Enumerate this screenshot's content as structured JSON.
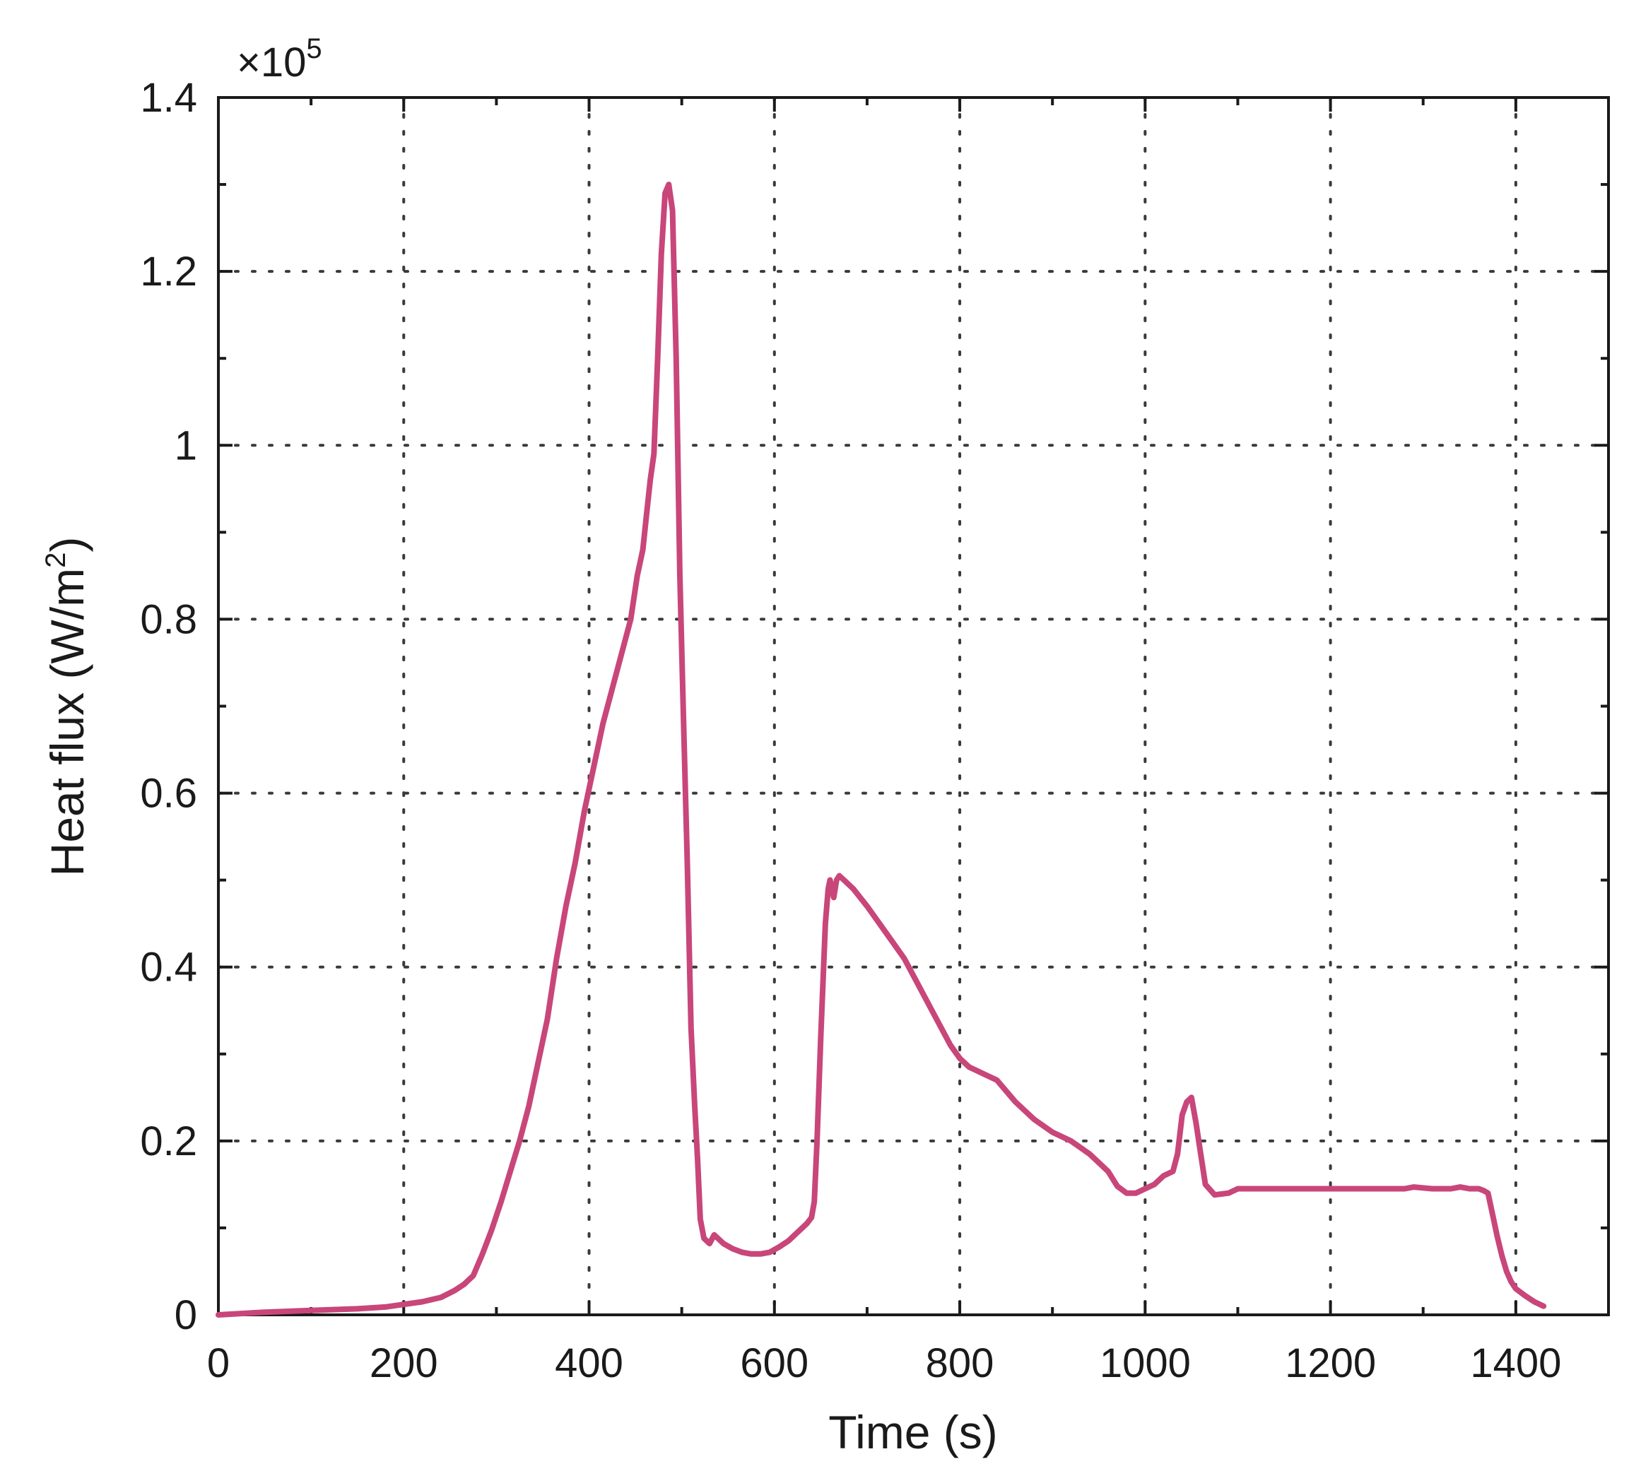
{
  "chart_data": {
    "type": "line",
    "title": "",
    "xlabel": "Time (s)",
    "ylabel": {
      "text": "Heat flux (W/m",
      "sup": "2",
      "close": ")"
    },
    "y_multiplier": {
      "text": "×10",
      "sup": "5"
    },
    "xlim": [
      0,
      1500
    ],
    "ylim": [
      0,
      1.4
    ],
    "x_ticks": [
      0,
      200,
      400,
      600,
      800,
      1000,
      1200,
      1400
    ],
    "x_tick_labels": [
      "0",
      "200",
      "400",
      "600",
      "800",
      "1000",
      "1200",
      "1400"
    ],
    "y_ticks": [
      0,
      0.2,
      0.4,
      0.6,
      0.8,
      1.0,
      1.2,
      1.4
    ],
    "y_tick_labels": [
      "0",
      "0.2",
      "0.4",
      "0.6",
      "0.8",
      "1",
      "1.2",
      "1.4"
    ],
    "x_minor_step": 100,
    "y_minor_step": 0.1,
    "grid": true,
    "series": [
      {
        "color": "#c8467a",
        "x": [
          0,
          50,
          100,
          150,
          180,
          200,
          220,
          240,
          255,
          265,
          275,
          285,
          295,
          305,
          315,
          325,
          335,
          345,
          355,
          365,
          375,
          385,
          395,
          405,
          415,
          425,
          435,
          445,
          452,
          458,
          462,
          466,
          470,
          474,
          478,
          482,
          486,
          490,
          494,
          498,
          502,
          506,
          510,
          514,
          517,
          520,
          524,
          530,
          535,
          545,
          555,
          565,
          575,
          585,
          595,
          605,
          615,
          625,
          635,
          640,
          643,
          646,
          650,
          655,
          658,
          660,
          664,
          667,
          670,
          675,
          685,
          700,
          720,
          740,
          750,
          760,
          775,
          790,
          800,
          810,
          820,
          830,
          840,
          860,
          880,
          900,
          920,
          940,
          950,
          960,
          970,
          980,
          990,
          1000,
          1010,
          1020,
          1030,
          1035,
          1040,
          1045,
          1050,
          1055,
          1060,
          1065,
          1075,
          1090,
          1100,
          1150,
          1200,
          1250,
          1280,
          1290,
          1300,
          1310,
          1320,
          1330,
          1340,
          1350,
          1360,
          1365,
          1370,
          1375,
          1380,
          1385,
          1390,
          1395,
          1400,
          1410,
          1420,
          1430
        ],
        "values": [
          0.0,
          0.003,
          0.005,
          0.007,
          0.009,
          0.012,
          0.015,
          0.02,
          0.028,
          0.035,
          0.045,
          0.07,
          0.098,
          0.13,
          0.165,
          0.2,
          0.24,
          0.29,
          0.34,
          0.41,
          0.47,
          0.52,
          0.58,
          0.63,
          0.68,
          0.72,
          0.76,
          0.8,
          0.85,
          0.88,
          0.92,
          0.96,
          0.99,
          1.1,
          1.22,
          1.29,
          1.3,
          1.27,
          1.1,
          0.85,
          0.68,
          0.52,
          0.33,
          0.24,
          0.18,
          0.11,
          0.088,
          0.082,
          0.092,
          0.082,
          0.076,
          0.072,
          0.07,
          0.07,
          0.072,
          0.078,
          0.085,
          0.095,
          0.105,
          0.112,
          0.13,
          0.2,
          0.32,
          0.45,
          0.49,
          0.5,
          0.48,
          0.5,
          0.505,
          0.5,
          0.49,
          0.47,
          0.44,
          0.41,
          0.39,
          0.37,
          0.34,
          0.31,
          0.295,
          0.285,
          0.28,
          0.275,
          0.27,
          0.245,
          0.225,
          0.21,
          0.2,
          0.185,
          0.175,
          0.165,
          0.148,
          0.14,
          0.14,
          0.145,
          0.15,
          0.16,
          0.165,
          0.185,
          0.23,
          0.245,
          0.25,
          0.22,
          0.185,
          0.15,
          0.138,
          0.14,
          0.145,
          0.145,
          0.145,
          0.145,
          0.145,
          0.147,
          0.146,
          0.145,
          0.145,
          0.145,
          0.147,
          0.145,
          0.145,
          0.143,
          0.14,
          0.115,
          0.09,
          0.068,
          0.05,
          0.038,
          0.03,
          0.022,
          0.015,
          0.01
        ]
      }
    ]
  }
}
